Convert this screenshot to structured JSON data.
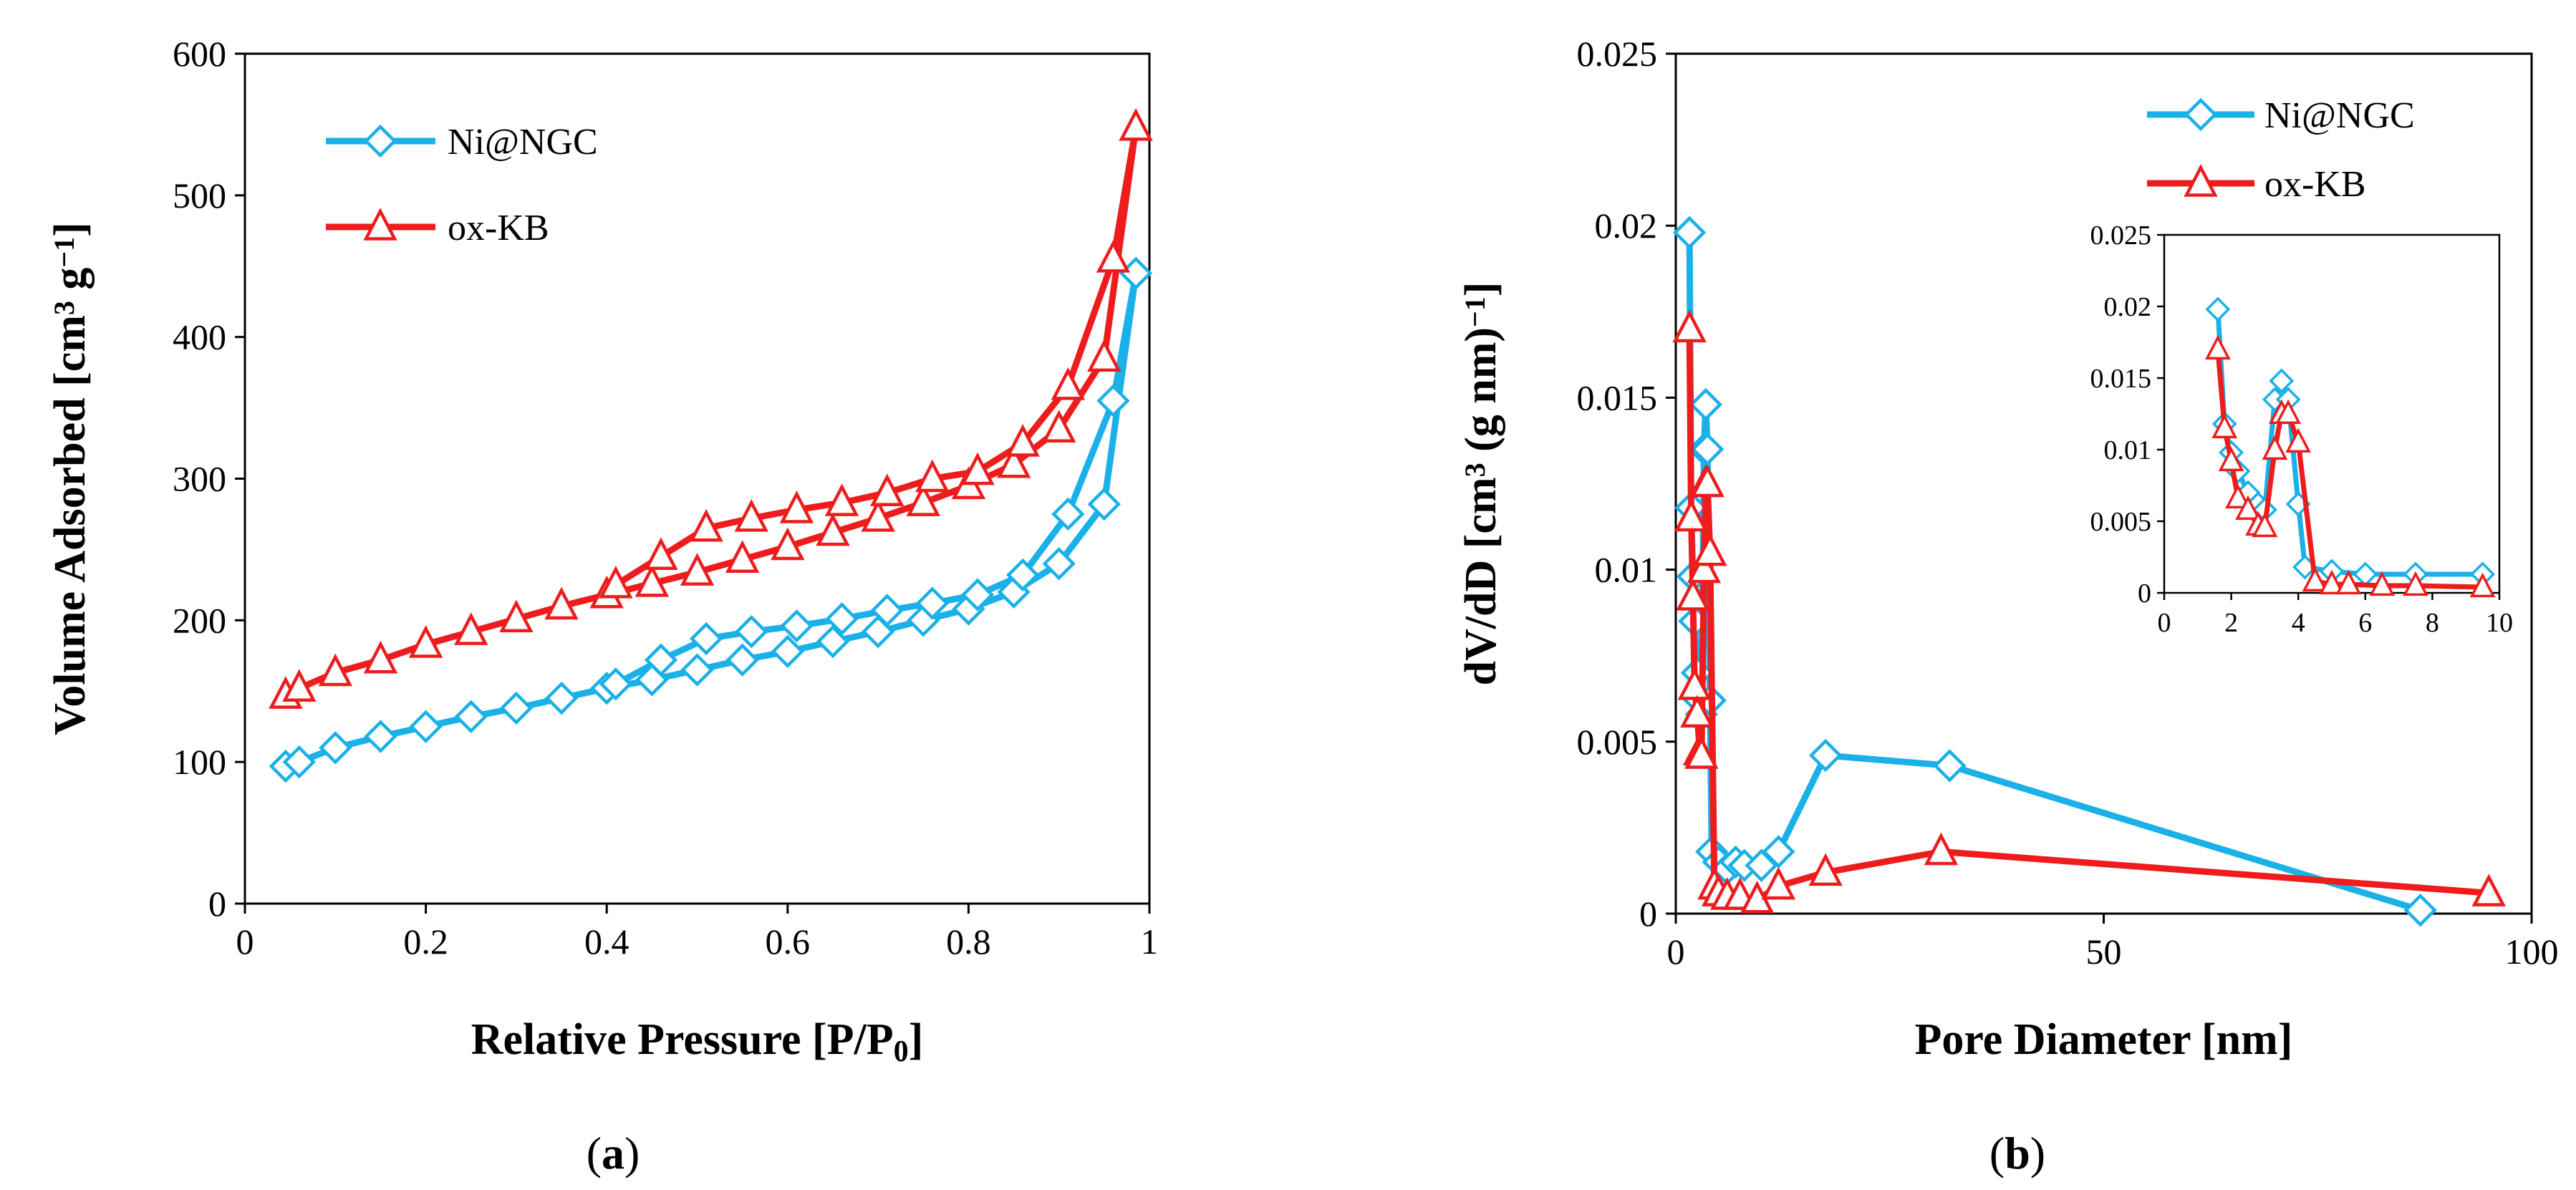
{
  "chart_data": [
    {
      "type": "line",
      "panel": "a",
      "caption_letter": "a",
      "xlabel_main": "Relative Pressure [P/P",
      "xlabel_sub": "0",
      "xlabel_end": "]",
      "ylabel_main": "Volume Adsorbed [cm",
      "ylabel_sup1": "3",
      "ylabel_mid": " g",
      "ylabel_sup2": "−1",
      "ylabel_end": "]",
      "xlim": [
        0,
        1
      ],
      "ylim": [
        0,
        600
      ],
      "xticks": [
        0,
        0.2,
        0.4,
        0.6,
        0.8,
        1
      ],
      "xtick_labels": [
        "0",
        "0.2",
        "0.4",
        "0.6",
        "0.8",
        "1"
      ],
      "yticks": [
        0,
        100,
        200,
        300,
        400,
        500,
        600
      ],
      "ytick_labels": [
        "0",
        "100",
        "200",
        "300",
        "400",
        "500",
        "600"
      ],
      "legend": [
        "Ni@NGC",
        "ox-KB"
      ],
      "series": [
        {
          "name": "Ni@NGC",
          "color": "#1ab0e8",
          "marker": "diamond",
          "x": [
            0.045,
            0.06,
            0.1,
            0.15,
            0.2,
            0.25,
            0.3,
            0.35,
            0.4,
            0.45,
            0.5,
            0.55,
            0.6,
            0.65,
            0.7,
            0.75,
            0.8,
            0.85,
            0.9,
            0.95,
            0.985,
            0.96,
            0.91,
            0.86,
            0.81,
            0.76,
            0.71,
            0.66,
            0.61,
            0.56,
            0.51,
            0.46,
            0.41
          ],
          "y": [
            97,
            100,
            110,
            118,
            125,
            132,
            138,
            145,
            152,
            158,
            165,
            172,
            178,
            185,
            192,
            200,
            208,
            220,
            240,
            282,
            445,
            355,
            275,
            232,
            218,
            212,
            207,
            201,
            196,
            192,
            187,
            172,
            155
          ]
        },
        {
          "name": "ox-KB",
          "color": "#ee1c1c",
          "marker": "triangle",
          "x": [
            0.045,
            0.06,
            0.1,
            0.15,
            0.2,
            0.25,
            0.3,
            0.35,
            0.4,
            0.45,
            0.5,
            0.55,
            0.6,
            0.65,
            0.7,
            0.75,
            0.8,
            0.85,
            0.9,
            0.95,
            0.985,
            0.96,
            0.91,
            0.86,
            0.81,
            0.76,
            0.71,
            0.66,
            0.61,
            0.56,
            0.51,
            0.46,
            0.41
          ],
          "y": [
            147,
            152,
            163,
            172,
            183,
            192,
            201,
            210,
            218,
            226,
            234,
            243,
            252,
            262,
            272,
            283,
            295,
            310,
            335,
            385,
            548,
            455,
            365,
            325,
            305,
            300,
            290,
            283,
            278,
            272,
            265,
            245,
            225
          ]
        }
      ]
    },
    {
      "type": "line",
      "panel": "b",
      "caption_letter": "b",
      "xlabel": "Pore Diameter [nm]",
      "ylabel_main": "dV/dD [cm",
      "ylabel_sup1": "3",
      "ylabel_mid": " (g nm)",
      "ylabel_sup2": "−1",
      "ylabel_end": "]",
      "xlim": [
        0,
        100
      ],
      "ylim": [
        0,
        0.025
      ],
      "xticks": [
        0,
        50,
        100
      ],
      "xtick_labels": [
        "0",
        "50",
        "100"
      ],
      "yticks": [
        0,
        0.005,
        0.01,
        0.015,
        0.02,
        0.025
      ],
      "ytick_labels": [
        "0",
        "0.005",
        "0.01",
        "0.015",
        "0.02",
        "0.025"
      ],
      "legend": [
        "Ni@NGC",
        "ox-KB"
      ],
      "series": [
        {
          "name": "Ni@NGC",
          "color": "#1ab0e8",
          "marker": "diamond",
          "x": [
            1.6,
            1.8,
            2.0,
            2.2,
            2.5,
            2.8,
            3.0,
            3.3,
            3.5,
            3.7,
            4.0,
            4.2,
            5.0,
            6.0,
            7.0,
            8.0,
            10.0,
            12.0,
            17.5,
            32.0,
            87.0
          ],
          "y": [
            0.0198,
            0.0118,
            0.0098,
            0.0085,
            0.007,
            0.0062,
            0.0058,
            0.0135,
            0.0148,
            0.0135,
            0.0062,
            0.0018,
            0.0015,
            0.0013,
            0.0015,
            0.0014,
            0.0014,
            0.0018,
            0.0046,
            0.0043,
            0.0001
          ]
        },
        {
          "name": "ox-KB",
          "color": "#ee1c1c",
          "marker": "triangle",
          "x": [
            1.6,
            1.8,
            2.0,
            2.2,
            2.5,
            2.8,
            3.0,
            3.3,
            3.5,
            3.7,
            4.0,
            4.5,
            5.0,
            6.0,
            7.5,
            9.5,
            12.0,
            17.5,
            31.0,
            95.0
          ],
          "y": [
            0.017,
            0.0115,
            0.0092,
            0.0066,
            0.0058,
            0.0047,
            0.0046,
            0.01,
            0.0125,
            0.0125,
            0.0105,
            0.0008,
            0.0006,
            0.0005,
            0.0005,
            0.0004,
            0.0008,
            0.0012,
            0.0018,
            0.0006
          ]
        }
      ],
      "inset": {
        "xlim": [
          0,
          10
        ],
        "ylim": [
          0,
          0.025
        ],
        "xticks": [
          0,
          2,
          4,
          6,
          8,
          10
        ],
        "xtick_labels": [
          "0",
          "2",
          "4",
          "6",
          "8",
          "10"
        ],
        "yticks": [
          0,
          0.005,
          0.01,
          0.015,
          0.02,
          0.025
        ],
        "ytick_labels": [
          "0",
          "0.005",
          "0.01",
          "0.015",
          "0.02",
          "0.025"
        ],
        "series": [
          {
            "name": "Ni@NGC",
            "color": "#1ab0e8",
            "marker": "diamond",
            "x": [
              1.6,
              1.8,
              2.0,
              2.2,
              2.5,
              2.8,
              3.0,
              3.3,
              3.5,
              3.7,
              4.0,
              4.2,
              5.0,
              6.0,
              7.5,
              9.5
            ],
            "y": [
              0.0198,
              0.0118,
              0.0098,
              0.0085,
              0.007,
              0.0062,
              0.0058,
              0.0135,
              0.0148,
              0.0135,
              0.0062,
              0.0018,
              0.0015,
              0.0013,
              0.0013,
              0.0013
            ]
          },
          {
            "name": "ox-KB",
            "color": "#ee1c1c",
            "marker": "triangle",
            "x": [
              1.6,
              1.8,
              2.0,
              2.2,
              2.5,
              2.8,
              3.0,
              3.3,
              3.5,
              3.7,
              4.0,
              4.5,
              5.0,
              5.5,
              6.5,
              7.5,
              9.5
            ],
            "y": [
              0.017,
              0.0115,
              0.0092,
              0.0066,
              0.0058,
              0.0047,
              0.0046,
              0.01,
              0.0125,
              0.0125,
              0.0105,
              0.0008,
              0.0006,
              0.0006,
              0.0005,
              0.0005,
              0.0004
            ]
          }
        ]
      }
    }
  ]
}
